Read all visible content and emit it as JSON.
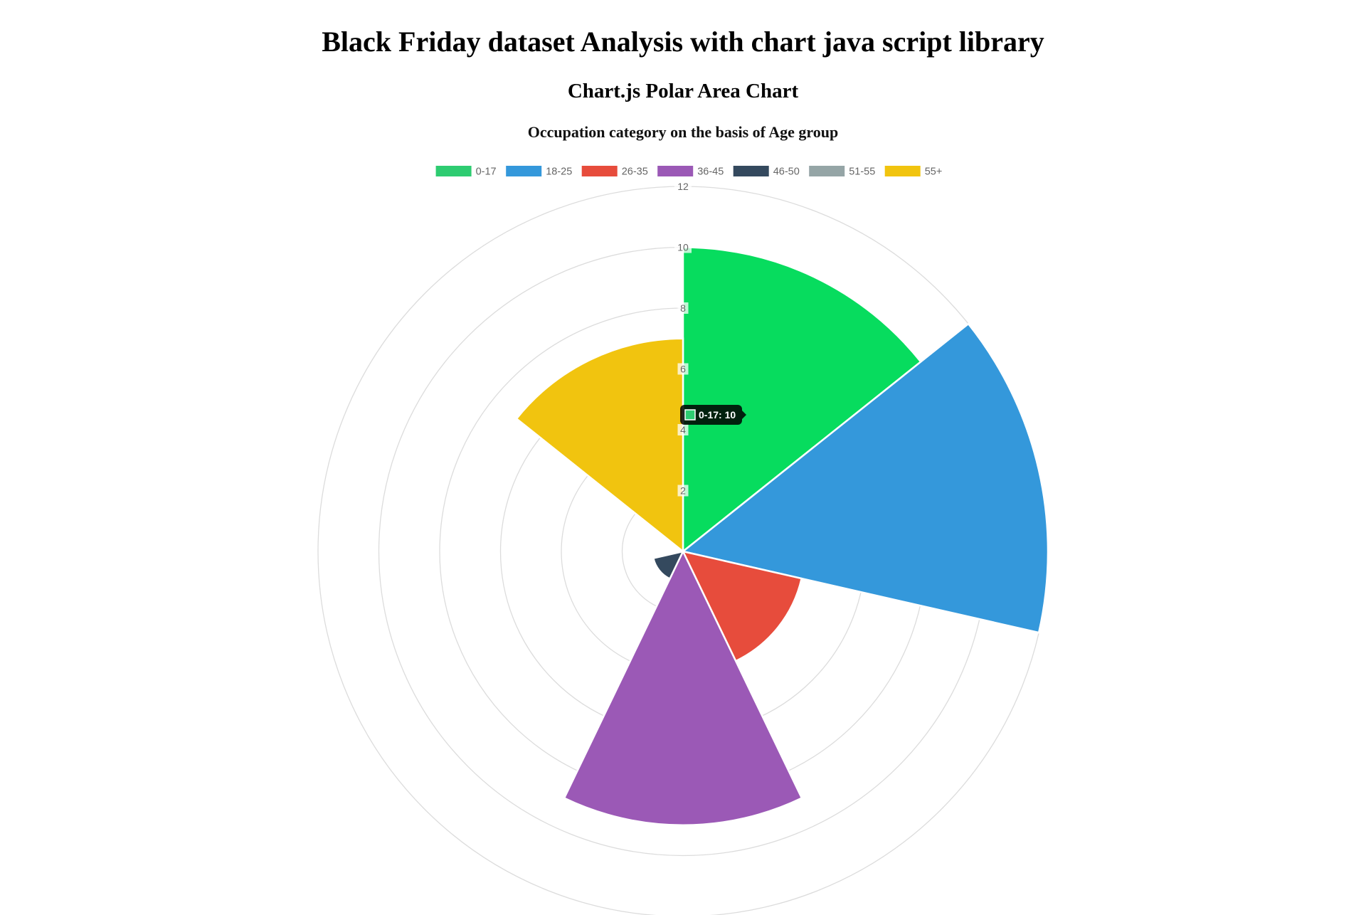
{
  "page": {
    "heading": "Black Friday dataset Analysis with chart java script library",
    "subheading": "Chart.js Polar Area Chart"
  },
  "chart_data": {
    "type": "polarArea",
    "title": "Occupation category on the basis of Age group",
    "categories": [
      "0-17",
      "18-25",
      "26-35",
      "36-45",
      "46-50",
      "51-55",
      "55+"
    ],
    "values": [
      10,
      12,
      4,
      9,
      1,
      0,
      7
    ],
    "colors": [
      "#2ecc71",
      "#3498db",
      "#e74c3c",
      "#9b59b6",
      "#34495e",
      "#95a5a6",
      "#f1c40f"
    ],
    "radial_axis": {
      "min": 0,
      "max": 12,
      "step": 2,
      "tick_labels": [
        "2",
        "4",
        "6",
        "8",
        "10",
        "12"
      ]
    },
    "grid": true,
    "legend": "top",
    "tooltip": {
      "category": "0-17",
      "text": "0-17: 10",
      "color": "#2ecc71"
    }
  }
}
